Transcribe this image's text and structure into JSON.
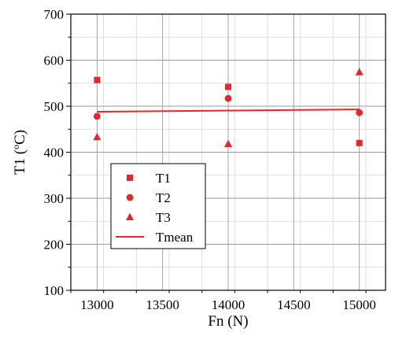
{
  "chart_data": {
    "type": "scatter",
    "xlabel": "Fn (N)",
    "ylabel_main": "T1 (",
    "ylabel_sup": "o",
    "ylabel_unit": "C)",
    "xlim": [
      12800,
      15200
    ],
    "ylim": [
      100,
      700
    ],
    "x_ticks": [
      13000,
      13500,
      14000,
      14500,
      15000
    ],
    "y_ticks": [
      100,
      200,
      300,
      400,
      500,
      600,
      700
    ],
    "x_minor_step": 250,
    "y_minor_step": 50,
    "grid": true,
    "legend_position": "lower-left",
    "series": [
      {
        "name": "T1",
        "marker": "square",
        "x": [
          13000,
          14000,
          15000
        ],
        "values": [
          557,
          542,
          420
        ]
      },
      {
        "name": "T2",
        "marker": "circle",
        "x": [
          13000,
          14000,
          15000
        ],
        "values": [
          478,
          517,
          486
        ]
      },
      {
        "name": "T3",
        "marker": "triangle",
        "x": [
          13000,
          14000,
          15000
        ],
        "values": [
          433,
          418,
          574
        ]
      },
      {
        "name": "Tmean",
        "marker": "line",
        "x": [
          13000,
          15000
        ],
        "values": [
          488,
          493
        ]
      }
    ],
    "color": "#e8252b"
  }
}
